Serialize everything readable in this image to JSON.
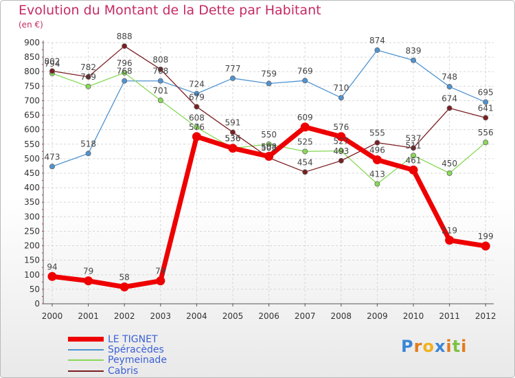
{
  "chart_data": {
    "type": "line",
    "title": "Evolution du Montant de la Dette par Habitant",
    "ylabel": "(en €)",
    "xlabel": "",
    "categories": [
      "2000",
      "2001",
      "2002",
      "2003",
      "2004",
      "2005",
      "2006",
      "2007",
      "2008",
      "2009",
      "2010",
      "2011",
      "2012"
    ],
    "ylim": [
      0,
      900
    ],
    "yticks": [
      0,
      50,
      100,
      150,
      200,
      250,
      300,
      350,
      400,
      450,
      500,
      550,
      600,
      650,
      700,
      750,
      800,
      850,
      900
    ],
    "grid": true,
    "legend_position": "bottom-left",
    "series": [
      {
        "name": "Spéracèdes",
        "color": "#4f93d1",
        "values": [
          473,
          518,
          768,
          768,
          724,
          777,
          759,
          769,
          710,
          874,
          839,
          748,
          695
        ]
      },
      {
        "name": "Peymeinade",
        "color": "#88d957",
        "values": [
          794,
          749,
          796,
          701,
          608,
          536,
          550,
          525,
          527,
          413,
          511,
          450,
          556
        ]
      },
      {
        "name": "Cabris",
        "color": "#7a1e22",
        "values": [
          802,
          782,
          888,
          808,
          679,
          591,
          503,
          454,
          493,
          555,
          537,
          674,
          641
        ]
      },
      {
        "name": "LE TIGNET",
        "color": "#ee0000",
        "values": [
          94,
          79,
          58,
          79,
          576,
          536,
          508,
          609,
          576,
          496,
          461,
          219,
          199
        ]
      }
    ],
    "data_labels": [
      [
        "473",
        "518",
        "768",
        "768",
        "724",
        "777",
        "759",
        "769",
        "710",
        "874",
        "839",
        "748",
        "695"
      ],
      [
        "794",
        "749",
        "796",
        "701",
        "608",
        "536",
        "550",
        "525",
        "527",
        "413",
        "511",
        "450",
        "556"
      ],
      [
        "802",
        "782",
        "888",
        "808",
        "679",
        "591",
        "503",
        "454",
        "493",
        "555",
        "537",
        "674",
        "641"
      ],
      [
        "94",
        "79",
        "58",
        "79",
        "576",
        "536",
        "508",
        "609",
        "576",
        "496",
        "461",
        "219",
        "199"
      ]
    ]
  },
  "legend": {
    "items": [
      {
        "label": "LE TIGNET",
        "color": "#ee0000"
      },
      {
        "label": "Spéracèdes",
        "color": "#4f93d1"
      },
      {
        "label": "Peymeinade",
        "color": "#88d957"
      },
      {
        "label": "Cabris",
        "color": "#7a1e22"
      }
    ]
  },
  "logo": {
    "letters": [
      "P",
      "r",
      "o",
      "x",
      "i",
      "t",
      "i"
    ],
    "colors": [
      "#3a86d6",
      "#e27b1c",
      "#f0b21e",
      "#3a86d6",
      "#e27b1c",
      "#7cc244",
      "#e27b1c"
    ]
  }
}
